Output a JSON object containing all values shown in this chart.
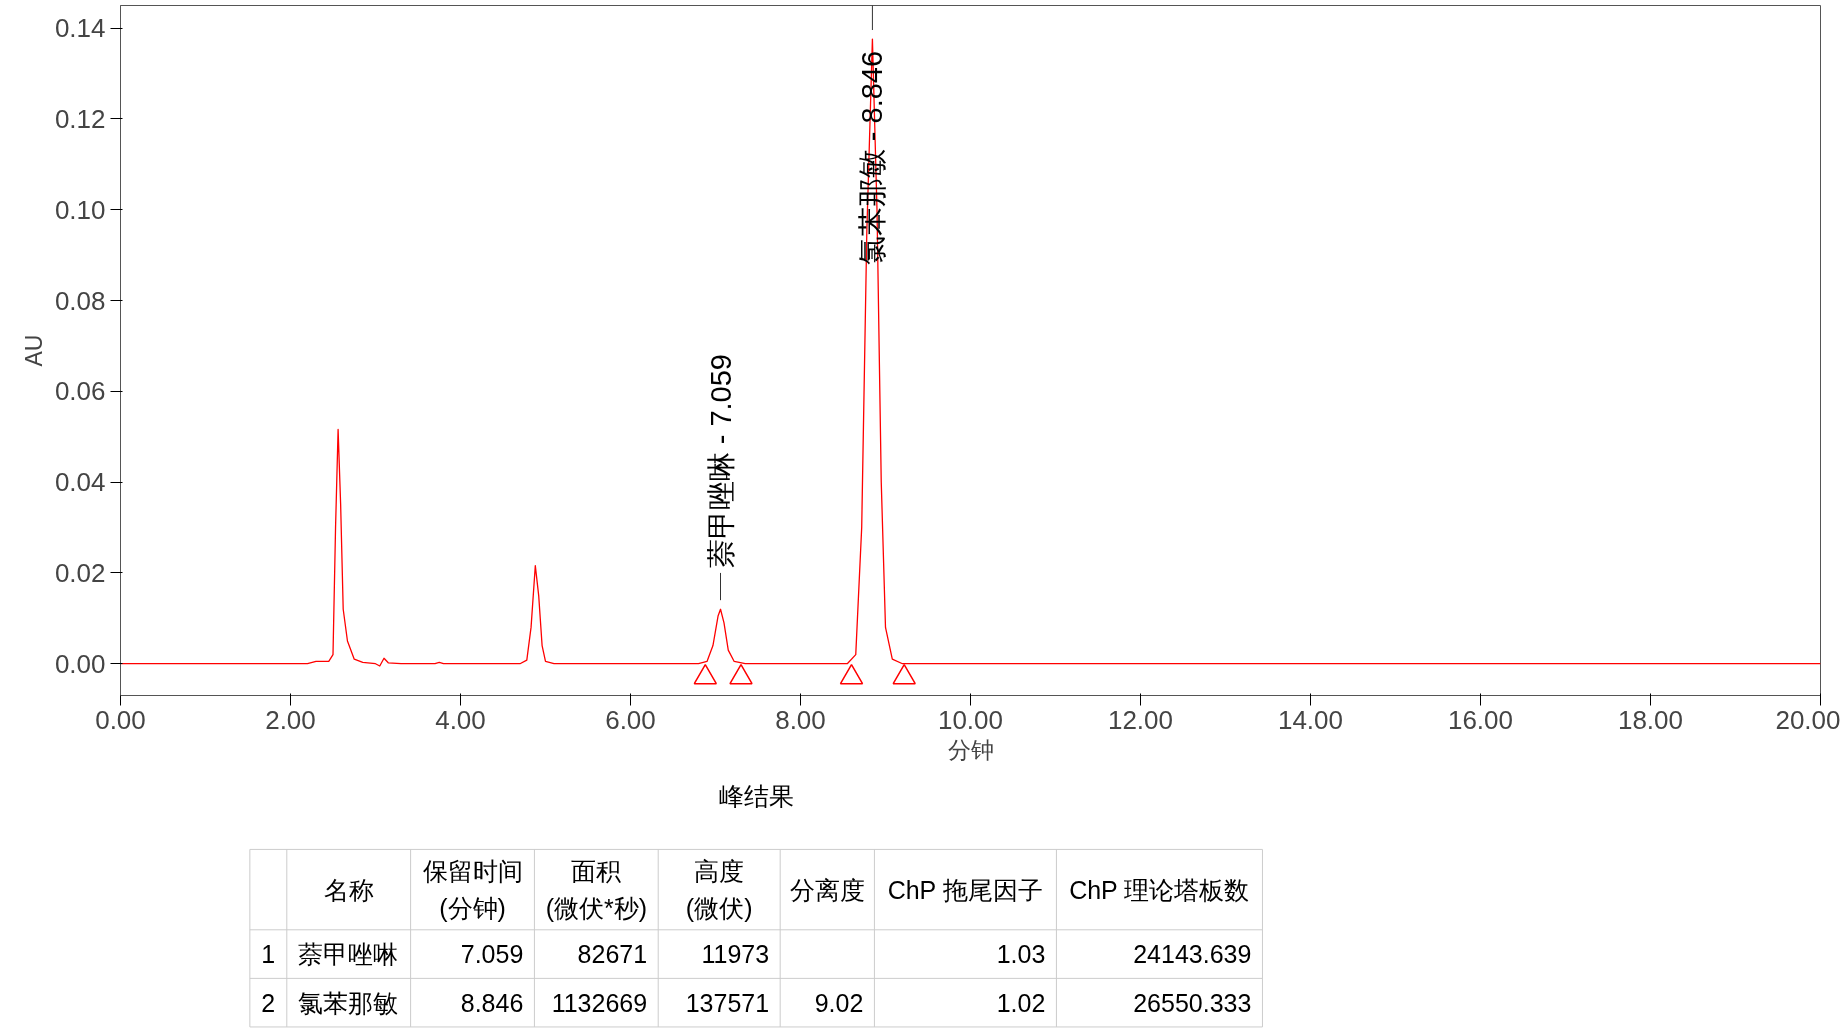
{
  "chart_data": {
    "type": "line",
    "xlabel": "分钟",
    "ylabel": "AU",
    "xlim": [
      0,
      20
    ],
    "ylim": [
      -0.007,
      0.145
    ],
    "xticks": [
      {
        "value": 0,
        "label": "0.00"
      },
      {
        "value": 2,
        "label": "2.00"
      },
      {
        "value": 4,
        "label": "4.00"
      },
      {
        "value": 6,
        "label": "6.00"
      },
      {
        "value": 8,
        "label": "8.00"
      },
      {
        "value": 10,
        "label": "10.00"
      },
      {
        "value": 12,
        "label": "12.00"
      },
      {
        "value": 14,
        "label": "14.00"
      },
      {
        "value": 16,
        "label": "16.00"
      },
      {
        "value": 18,
        "label": "18.00"
      },
      {
        "value": 20,
        "label": "20.00"
      }
    ],
    "yticks": [
      {
        "value": 0,
        "label": "0.00"
      },
      {
        "value": 0.02,
        "label": "0.02"
      },
      {
        "value": 0.04,
        "label": "0.04"
      },
      {
        "value": 0.06,
        "label": "0.06"
      },
      {
        "value": 0.08,
        "label": "0.08"
      },
      {
        "value": 0.1,
        "label": "0.10"
      },
      {
        "value": 0.12,
        "label": "0.12"
      },
      {
        "value": 0.14,
        "label": "0.14"
      }
    ],
    "line_style": "solid",
    "series": [
      {
        "color": "#ff0000",
        "marker": "none",
        "x": [
          0,
          2.2,
          2.3,
          2.45,
          2.5,
          2.53,
          2.56,
          2.59,
          2.62,
          2.67,
          2.75,
          2.85,
          3.0,
          3.05,
          3.1,
          3.15,
          3.3,
          3.7,
          3.75,
          3.8,
          4.7,
          4.78,
          4.83,
          4.88,
          4.92,
          4.96,
          5.0,
          5.1,
          6.8,
          6.9,
          6.97,
          7.03,
          7.059,
          7.1,
          7.15,
          7.22,
          7.35,
          8.55,
          8.65,
          8.72,
          8.78,
          8.846,
          8.9,
          8.95,
          9.0,
          9.08,
          9.2,
          20
        ],
        "values": [
          0,
          0,
          0.0005,
          0.0005,
          0.002,
          0.03,
          0.0516,
          0.035,
          0.012,
          0.005,
          0.001,
          0.0003,
          0,
          -0.0005,
          0.0012,
          0.0002,
          0,
          0,
          0.0003,
          0,
          0,
          0.0008,
          0.008,
          0.0216,
          0.015,
          0.004,
          0.0005,
          0,
          0,
          0.0005,
          0.004,
          0.0105,
          0.012,
          0.009,
          0.003,
          0.0005,
          0,
          0,
          0.002,
          0.03,
          0.095,
          0.1376,
          0.1,
          0.04,
          0.008,
          0.001,
          0,
          0
        ]
      },
      {
        "type": "scatter",
        "color": "#ff0000",
        "marker": "triangle",
        "x": [
          6.88,
          7.3,
          8.6,
          9.22
        ],
        "values": [
          -0.003,
          -0.003,
          -0.003,
          -0.003
        ]
      }
    ],
    "annotations": [
      {
        "text": "萘甲唑啉 - 7.059",
        "x": 7.059,
        "y": 0.012
      },
      {
        "text": "氯苯那敏 - 8.846",
        "x": 8.846,
        "y": 0.1376
      },
      "峰结果",
      "名称",
      "保留时间\n(分钟)",
      "面积\n(微伏*秒)",
      "高度\n(微伏)",
      "分离度",
      "ChP 拖尾因子",
      "ChP 理论塔板数",
      "1",
      "萘甲唑啉",
      "7.059",
      "82671",
      "11973",
      "1.03",
      "24143.639",
      "2",
      "氯苯那敏",
      "8.846",
      "1132669",
      "137571",
      "9.02",
      "1.02",
      "26550.333"
    ]
  }
}
